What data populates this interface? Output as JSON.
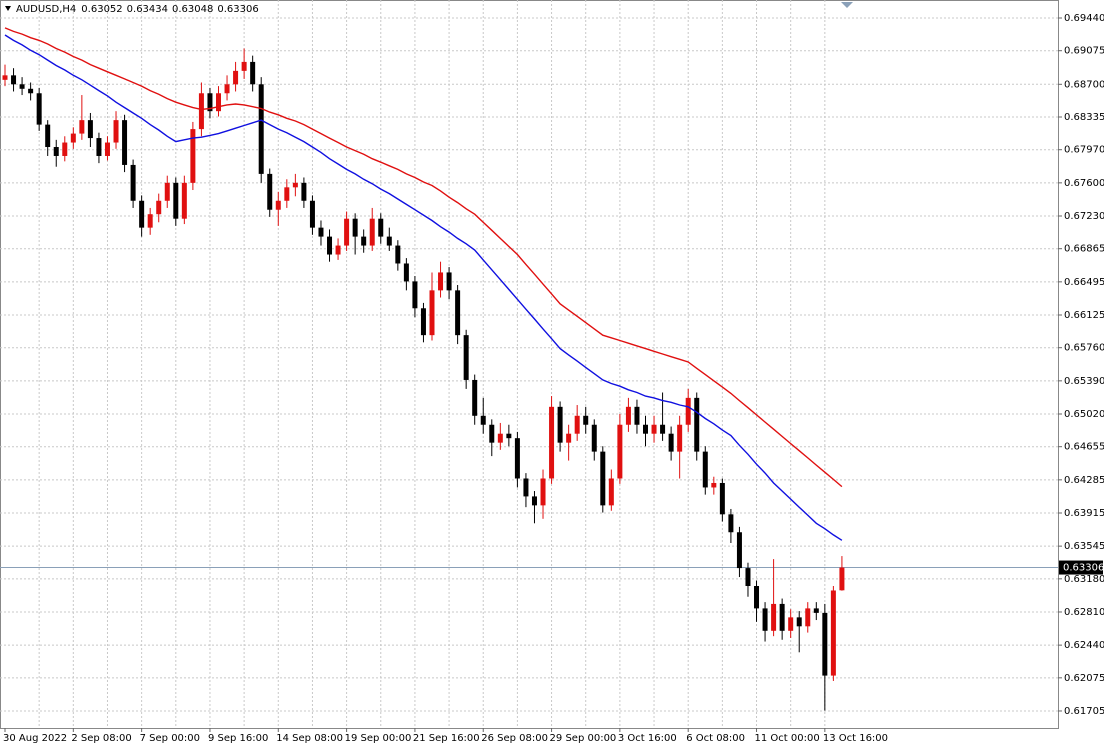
{
  "chart_data": {
    "type": "candlestick",
    "title": "AUDUSD,H4",
    "up_color": "#e01010",
    "down_color": "#000000",
    "grid": true,
    "categories": [
      "30 Aug 2022",
      null,
      null,
      null,
      null,
      null,
      null,
      null,
      "2 Sep 08:00",
      null,
      null,
      null,
      null,
      null,
      null,
      null,
      "7 Sep 00:00",
      null,
      null,
      null,
      null,
      null,
      null,
      null,
      "9 Sep 16:00",
      null,
      null,
      null,
      null,
      null,
      null,
      null,
      "14 Sep 08:00",
      null,
      null,
      null,
      null,
      null,
      null,
      null,
      "19 Sep 00:00",
      null,
      null,
      null,
      null,
      null,
      null,
      null,
      "21 Sep 16:00",
      null,
      null,
      null,
      null,
      null,
      null,
      null,
      "26 Sep 08:00",
      null,
      null,
      null,
      null,
      null,
      null,
      null,
      "29 Sep 00:00",
      null,
      null,
      null,
      null,
      null,
      null,
      null,
      "3 Oct 16:00",
      null,
      null,
      null,
      null,
      null,
      null,
      null,
      "6 Oct 08:00",
      null,
      null,
      null,
      null,
      null,
      null,
      null,
      "11 Oct 00:00",
      null,
      null,
      null,
      null,
      null,
      null,
      null,
      "13 Oct 16:00",
      null,
      null
    ],
    "ohlc": [
      [
        0.6875,
        0.6892,
        0.6868,
        0.688
      ],
      [
        0.688,
        0.6888,
        0.6862,
        0.687
      ],
      [
        0.687,
        0.6878,
        0.6858,
        0.6865
      ],
      [
        0.6865,
        0.6872,
        0.6852,
        0.686
      ],
      [
        0.686,
        0.6866,
        0.6818,
        0.6825
      ],
      [
        0.6825,
        0.683,
        0.679,
        0.68
      ],
      [
        0.68,
        0.6808,
        0.6778,
        0.679
      ],
      [
        0.679,
        0.6812,
        0.6784,
        0.6805
      ],
      [
        0.6805,
        0.6822,
        0.6798,
        0.6815
      ],
      [
        0.6815,
        0.6858,
        0.6808,
        0.683
      ],
      [
        0.683,
        0.6838,
        0.68,
        0.681
      ],
      [
        0.681,
        0.6816,
        0.6782,
        0.679
      ],
      [
        0.679,
        0.6812,
        0.6785,
        0.6805
      ],
      [
        0.6805,
        0.684,
        0.6798,
        0.683
      ],
      [
        0.683,
        0.6836,
        0.6772,
        0.678
      ],
      [
        0.678,
        0.6786,
        0.6732,
        0.674
      ],
      [
        0.674,
        0.6746,
        0.67,
        0.671
      ],
      [
        0.671,
        0.6732,
        0.6702,
        0.6725
      ],
      [
        0.6725,
        0.6748,
        0.6716,
        0.674
      ],
      [
        0.674,
        0.6768,
        0.6732,
        0.676
      ],
      [
        0.676,
        0.6766,
        0.6712,
        0.672
      ],
      [
        0.672,
        0.6768,
        0.6714,
        0.676
      ],
      [
        0.676,
        0.6828,
        0.6752,
        0.682
      ],
      [
        0.682,
        0.6872,
        0.6812,
        0.686
      ],
      [
        0.686,
        0.6866,
        0.6832,
        0.684
      ],
      [
        0.684,
        0.6868,
        0.6834,
        0.686
      ],
      [
        0.686,
        0.688,
        0.6852,
        0.687
      ],
      [
        0.687,
        0.6895,
        0.6862,
        0.6885
      ],
      [
        0.6885,
        0.691,
        0.6876,
        0.6895
      ],
      [
        0.6895,
        0.6902,
        0.6862,
        0.687
      ],
      [
        0.687,
        0.6878,
        0.676,
        0.677
      ],
      [
        0.677,
        0.6776,
        0.6722,
        0.673
      ],
      [
        0.673,
        0.675,
        0.6712,
        0.674
      ],
      [
        0.674,
        0.6764,
        0.6732,
        0.6755
      ],
      [
        0.6755,
        0.677,
        0.6745,
        0.676
      ],
      [
        0.676,
        0.6766,
        0.6732,
        0.674
      ],
      [
        0.674,
        0.6746,
        0.6702,
        0.671
      ],
      [
        0.671,
        0.6718,
        0.669,
        0.67
      ],
      [
        0.67,
        0.6708,
        0.6672,
        0.668
      ],
      [
        0.668,
        0.6698,
        0.6674,
        0.669
      ],
      [
        0.669,
        0.6728,
        0.6684,
        0.672
      ],
      [
        0.672,
        0.6726,
        0.668,
        0.67
      ],
      [
        0.67,
        0.6708,
        0.6682,
        0.669
      ],
      [
        0.669,
        0.6732,
        0.6684,
        0.672
      ],
      [
        0.672,
        0.6726,
        0.6692,
        0.67
      ],
      [
        0.67,
        0.671,
        0.6684,
        0.669
      ],
      [
        0.669,
        0.6696,
        0.6662,
        0.667
      ],
      [
        0.667,
        0.6676,
        0.664,
        0.665
      ],
      [
        0.665,
        0.6656,
        0.661,
        0.662
      ],
      [
        0.662,
        0.6626,
        0.6582,
        0.659
      ],
      [
        0.659,
        0.666,
        0.6584,
        0.664
      ],
      [
        0.664,
        0.6672,
        0.6632,
        0.666
      ],
      [
        0.666,
        0.6666,
        0.663,
        0.664
      ],
      [
        0.664,
        0.6646,
        0.658,
        0.659
      ],
      [
        0.659,
        0.6596,
        0.653,
        0.654
      ],
      [
        0.654,
        0.6546,
        0.649,
        0.65
      ],
      [
        0.65,
        0.652,
        0.648,
        0.649
      ],
      [
        0.649,
        0.6496,
        0.6455,
        0.647
      ],
      [
        0.647,
        0.6492,
        0.6462,
        0.648
      ],
      [
        0.648,
        0.649,
        0.6466,
        0.6475
      ],
      [
        0.6475,
        0.6482,
        0.642,
        0.643
      ],
      [
        0.643,
        0.6436,
        0.6398,
        0.641
      ],
      [
        0.641,
        0.6416,
        0.638,
        0.64
      ],
      [
        0.64,
        0.644,
        0.6385,
        0.643
      ],
      [
        0.643,
        0.6522,
        0.6424,
        0.651
      ],
      [
        0.651,
        0.6516,
        0.646,
        0.647
      ],
      [
        0.647,
        0.649,
        0.645,
        0.648
      ],
      [
        0.648,
        0.6512,
        0.6472,
        0.65
      ],
      [
        0.65,
        0.651,
        0.648,
        0.649
      ],
      [
        0.649,
        0.6496,
        0.645,
        0.646
      ],
      [
        0.646,
        0.6466,
        0.6392,
        0.64
      ],
      [
        0.64,
        0.644,
        0.6394,
        0.643
      ],
      [
        0.643,
        0.6502,
        0.6424,
        0.649
      ],
      [
        0.649,
        0.652,
        0.6482,
        0.651
      ],
      [
        0.651,
        0.6518,
        0.648,
        0.649
      ],
      [
        0.649,
        0.65,
        0.6466,
        0.648
      ],
      [
        0.648,
        0.65,
        0.647,
        0.649
      ],
      [
        0.649,
        0.6526,
        0.6472,
        0.648
      ],
      [
        0.648,
        0.6488,
        0.645,
        0.646
      ],
      [
        0.646,
        0.65,
        0.643,
        0.649
      ],
      [
        0.649,
        0.653,
        0.6482,
        0.652
      ],
      [
        0.652,
        0.6526,
        0.645,
        0.646
      ],
      [
        0.646,
        0.6466,
        0.6412,
        0.642
      ],
      [
        0.642,
        0.6432,
        0.6412,
        0.6425
      ],
      [
        0.6425,
        0.643,
        0.6382,
        0.639
      ],
      [
        0.639,
        0.6396,
        0.6358,
        0.637
      ],
      [
        0.637,
        0.6376,
        0.632,
        0.633
      ],
      [
        0.633,
        0.6336,
        0.6298,
        0.631
      ],
      [
        0.631,
        0.6316,
        0.627,
        0.6285
      ],
      [
        0.6285,
        0.6292,
        0.6248,
        0.626
      ],
      [
        0.626,
        0.634,
        0.6254,
        0.629
      ],
      [
        0.629,
        0.6296,
        0.625,
        0.626
      ],
      [
        0.626,
        0.6284,
        0.6252,
        0.6275
      ],
      [
        0.6275,
        0.6282,
        0.6236,
        0.6265
      ],
      [
        0.6265,
        0.6292,
        0.6258,
        0.6285
      ],
      [
        0.6285,
        0.6292,
        0.6272,
        0.628
      ],
      [
        0.628,
        0.629,
        0.6171,
        0.621
      ],
      [
        0.621,
        0.631,
        0.6204,
        0.6305
      ],
      [
        0.63052,
        0.63434,
        0.63048,
        0.63306
      ]
    ],
    "series": [
      {
        "color": "#1010e0",
        "values": [
          0.6925,
          0.6919,
          0.6914,
          0.6908,
          0.6903,
          0.6897,
          0.6891,
          0.6886,
          0.688,
          0.6875,
          0.6869,
          0.6863,
          0.6857,
          0.685,
          0.6844,
          0.6838,
          0.6832,
          0.6825,
          0.6819,
          0.6812,
          0.6806,
          0.6808,
          0.681,
          0.6811,
          0.6813,
          0.6815,
          0.6818,
          0.6821,
          0.6824,
          0.6827,
          0.683,
          0.6825,
          0.682,
          0.6816,
          0.6811,
          0.6806,
          0.68,
          0.6794,
          0.6787,
          0.6781,
          0.6775,
          0.677,
          0.6764,
          0.6759,
          0.6753,
          0.6748,
          0.6742,
          0.6736,
          0.673,
          0.6724,
          0.6718,
          0.6711,
          0.6705,
          0.6698,
          0.6692,
          0.6685,
          0.6674,
          0.6663,
          0.6652,
          0.6641,
          0.663,
          0.6619,
          0.6608,
          0.6597,
          0.6586,
          0.6575,
          0.6568,
          0.6561,
          0.6554,
          0.6547,
          0.654,
          0.6536,
          0.6533,
          0.6529,
          0.6526,
          0.6522,
          0.652,
          0.6517,
          0.6515,
          0.6512,
          0.651,
          0.6504,
          0.6497,
          0.6491,
          0.6484,
          0.6478,
          0.6467,
          0.6457,
          0.6446,
          0.6436,
          0.6425,
          0.6416,
          0.6407,
          0.6398,
          0.6389,
          0.638,
          0.6374,
          0.6367,
          0.6361
        ]
      },
      {
        "color": "#e01010",
        "values": [
          0.6933,
          0.6929,
          0.6926,
          0.6922,
          0.6919,
          0.6915,
          0.691,
          0.6906,
          0.6901,
          0.6897,
          0.6892,
          0.6888,
          0.6884,
          0.688,
          0.6876,
          0.6872,
          0.6868,
          0.6863,
          0.6859,
          0.6854,
          0.685,
          0.6847,
          0.6844,
          0.6842,
          0.6843,
          0.6845,
          0.6847,
          0.6848,
          0.6847,
          0.6845,
          0.6843,
          0.6839,
          0.6836,
          0.6832,
          0.6829,
          0.6825,
          0.682,
          0.6815,
          0.681,
          0.6805,
          0.68,
          0.6796,
          0.6792,
          0.6787,
          0.6783,
          0.6779,
          0.6775,
          0.677,
          0.6766,
          0.6761,
          0.6757,
          0.6751,
          0.6744,
          0.6738,
          0.6731,
          0.6725,
          0.6716,
          0.6707,
          0.6698,
          0.6689,
          0.668,
          0.6669,
          0.6658,
          0.6647,
          0.6636,
          0.6625,
          0.6618,
          0.6611,
          0.6604,
          0.6597,
          0.659,
          0.6587,
          0.6584,
          0.6581,
          0.6578,
          0.6575,
          0.6572,
          0.6569,
          0.6566,
          0.6563,
          0.656,
          0.6553,
          0.6546,
          0.6539,
          0.6532,
          0.6525,
          0.6517,
          0.6509,
          0.6501,
          0.6493,
          0.6485,
          0.6477,
          0.6469,
          0.6461,
          0.6453,
          0.6445,
          0.6437,
          0.6429,
          0.6421
        ]
      }
    ],
    "price_line": 0.63306,
    "ylim": [
      0.61515,
      0.69641
    ],
    "yticks": [
      {
        "value": 0.6944,
        "label": "0.69440"
      },
      {
        "value": 0.69075,
        "label": "0.69075"
      },
      {
        "value": 0.687,
        "label": "0.68700"
      },
      {
        "value": 0.68335,
        "label": "0.68335"
      },
      {
        "value": 0.6797,
        "label": "0.67970"
      },
      {
        "value": 0.676,
        "label": "0.67600"
      },
      {
        "value": 0.6723,
        "label": "0.67230"
      },
      {
        "value": 0.66865,
        "label": "0.66865"
      },
      {
        "value": 0.66495,
        "label": "0.66495"
      },
      {
        "value": 0.66125,
        "label": "0.66125"
      },
      {
        "value": 0.6576,
        "label": "0.65760"
      },
      {
        "value": 0.6539,
        "label": "0.65390"
      },
      {
        "value": 0.6502,
        "label": "0.65020"
      },
      {
        "value": 0.64655,
        "label": "0.64655"
      },
      {
        "value": 0.64285,
        "label": "0.64285"
      },
      {
        "value": 0.63915,
        "label": "0.63915"
      },
      {
        "value": 0.63545,
        "label": "0.63545"
      },
      {
        "value": 0.6318,
        "label": "0.63180"
      },
      {
        "value": 0.6281,
        "label": "0.62810"
      },
      {
        "value": 0.6244,
        "label": "0.62440"
      },
      {
        "value": 0.62075,
        "label": "0.62075"
      },
      {
        "value": 0.61705,
        "label": "0.61705"
      }
    ]
  }
}
